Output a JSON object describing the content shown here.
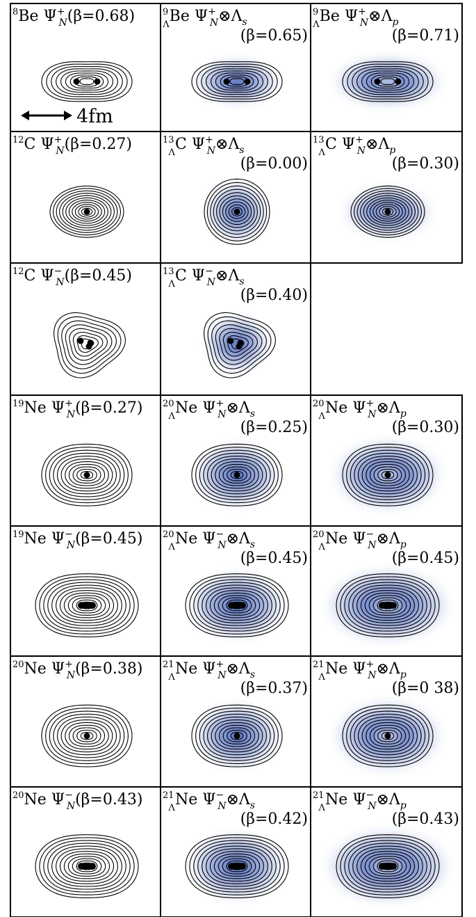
{
  "figure": {
    "scale_bar_label": "4fm",
    "cells": [
      {
        "nucleus_mass": "8",
        "nucleus": "Be",
        "wavefunction": "Ψ",
        "sub": "N",
        "sup": "+",
        "lambda_orbital": "",
        "beta": "0.68",
        "shape": "twocenter",
        "lambda_density": "none",
        "beta_same_line": true
      },
      {
        "nucleus_mass": "9",
        "nucleus": "Be",
        "wavefunction": "Ψ",
        "sub": "N",
        "sup": "+",
        "lambda_orbital": "s",
        "beta": "0.65",
        "shape": "twocenter",
        "lambda_density": "s",
        "beta_same_line": false
      },
      {
        "nucleus_mass": "9",
        "nucleus": "Be",
        "wavefunction": "Ψ",
        "sub": "N",
        "sup": "+",
        "lambda_orbital": "p",
        "beta": "0.71",
        "shape": "twocenter",
        "lambda_density": "p",
        "beta_same_line": false
      },
      {
        "nucleus_mass": "12",
        "nucleus": "C",
        "wavefunction": "Ψ",
        "sub": "N",
        "sup": "+",
        "lambda_orbital": "",
        "beta": "0.27",
        "shape": "oblate",
        "lambda_density": "none",
        "beta_same_line": true
      },
      {
        "nucleus_mass": "13",
        "nucleus": "C",
        "wavefunction": "Ψ",
        "sub": "N",
        "sup": "+",
        "lambda_orbital": "s",
        "beta": "0.00",
        "shape": "sphere",
        "lambda_density": "s",
        "beta_same_line": false
      },
      {
        "nucleus_mass": "13",
        "nucleus": "C",
        "wavefunction": "Ψ",
        "sub": "N",
        "sup": "+",
        "lambda_orbital": "p",
        "beta": "0.30",
        "shape": "oblate",
        "lambda_density": "p",
        "beta_same_line": false
      },
      {
        "nucleus_mass": "12",
        "nucleus": "C",
        "wavefunction": "Ψ",
        "sub": "N",
        "sup": "−",
        "lambda_orbital": "",
        "beta": "0.45",
        "shape": "triangle",
        "lambda_density": "none",
        "beta_same_line": true
      },
      {
        "nucleus_mass": "13",
        "nucleus": "C",
        "wavefunction": "Ψ",
        "sub": "N",
        "sup": "−",
        "lambda_orbital": "s",
        "beta": "0.40",
        "shape": "triangle",
        "lambda_density": "s",
        "beta_same_line": false
      },
      null,
      {
        "nucleus_mass": "19",
        "nucleus": "Ne",
        "wavefunction": "Ψ",
        "sub": "N",
        "sup": "+",
        "lambda_orbital": "",
        "beta": "0.27",
        "shape": "prolate",
        "lambda_density": "none",
        "beta_same_line": true
      },
      {
        "nucleus_mass": "20",
        "nucleus": "Ne",
        "wavefunction": "Ψ",
        "sub": "N",
        "sup": "+",
        "lambda_orbital": "s",
        "beta": "0.25",
        "shape": "prolate",
        "lambda_density": "s",
        "beta_same_line": false
      },
      {
        "nucleus_mass": "20",
        "nucleus": "Ne",
        "wavefunction": "Ψ",
        "sub": "N",
        "sup": "+",
        "lambda_orbital": "p",
        "beta": "0.30",
        "shape": "prolate",
        "lambda_density": "p",
        "beta_same_line": false
      },
      {
        "nucleus_mass": "19",
        "nucleus": "Ne",
        "wavefunction": "Ψ",
        "sub": "N",
        "sup": "−",
        "lambda_orbital": "",
        "beta": "0.45",
        "shape": "wide",
        "lambda_density": "none",
        "beta_same_line": true
      },
      {
        "nucleus_mass": "20",
        "nucleus": "Ne",
        "wavefunction": "Ψ",
        "sub": "N",
        "sup": "−",
        "lambda_orbital": "s",
        "beta": "0.45",
        "shape": "wide",
        "lambda_density": "s",
        "beta_same_line": false
      },
      {
        "nucleus_mass": "20",
        "nucleus": "Ne",
        "wavefunction": "Ψ",
        "sub": "N",
        "sup": "−",
        "lambda_orbital": "p",
        "beta": "0.45",
        "shape": "wide",
        "lambda_density": "p",
        "beta_same_line": false
      },
      {
        "nucleus_mass": "20",
        "nucleus": "Ne",
        "wavefunction": "Ψ",
        "sub": "N",
        "sup": "+",
        "lambda_orbital": "",
        "beta": "0.38",
        "shape": "prolate",
        "lambda_density": "none",
        "beta_same_line": true
      },
      {
        "nucleus_mass": "21",
        "nucleus": "Ne",
        "wavefunction": "Ψ",
        "sub": "N",
        "sup": "+",
        "lambda_orbital": "s",
        "beta": "0.37",
        "shape": "prolate",
        "lambda_density": "s",
        "beta_same_line": false
      },
      {
        "nucleus_mass": "21",
        "nucleus": "Ne",
        "wavefunction": "Ψ",
        "sub": "N",
        "sup": "+",
        "lambda_orbital": "p",
        "beta": "0 38",
        "shape": "prolate",
        "lambda_density": "p",
        "beta_same_line": false
      },
      {
        "nucleus_mass": "20",
        "nucleus": "Ne",
        "wavefunction": "Ψ",
        "sub": "N",
        "sup": "−",
        "lambda_orbital": "",
        "beta": "0.43",
        "shape": "wide",
        "lambda_density": "none",
        "beta_same_line": true
      },
      {
        "nucleus_mass": "21",
        "nucleus": "Ne",
        "wavefunction": "Ψ",
        "sub": "N",
        "sup": "−",
        "lambda_orbital": "s",
        "beta": "0.42",
        "shape": "wide",
        "lambda_density": "s",
        "beta_same_line": false
      },
      {
        "nucleus_mass": "21",
        "nucleus": "Ne",
        "wavefunction": "Ψ",
        "sub": "N",
        "sup": "−",
        "lambda_orbital": "p",
        "beta": "0.43",
        "shape": "wide",
        "lambda_density": "p",
        "beta_same_line": false
      }
    ],
    "colors": {
      "contour": "#000000",
      "lambda_density": "#2f4fb3",
      "border": "#000000",
      "background": "#ffffff"
    }
  }
}
